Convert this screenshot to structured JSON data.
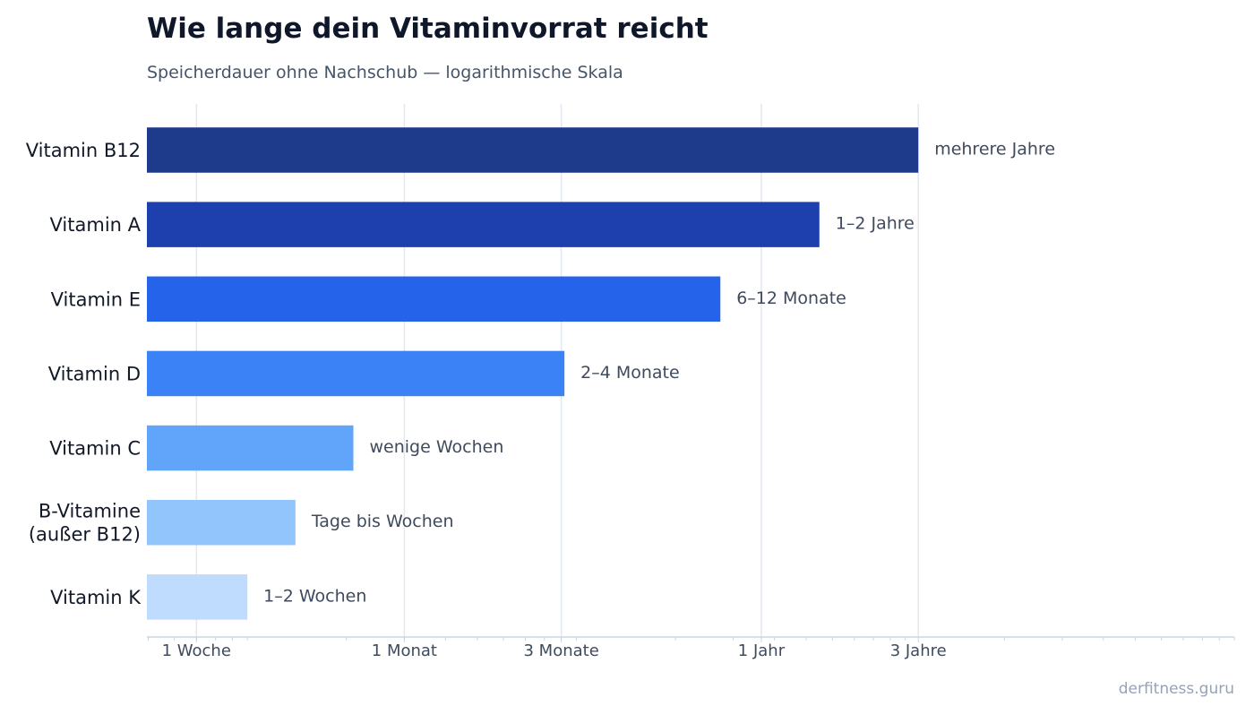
{
  "chart_data": {
    "type": "bar",
    "orientation": "horizontal",
    "title": "Wie lange dein Vitaminvorrat reicht",
    "subtitle": "Speicherdauer ohne Nachschub — logarithmische Skala",
    "xlabel": "",
    "ylabel": "",
    "x_scale": "log",
    "x_unit": "days",
    "xlim": [
      4.95,
      10000
    ],
    "grid": "vertical",
    "x_ticks": [
      {
        "value": 7,
        "label": "1 Woche"
      },
      {
        "value": 30,
        "label": "1 Monat"
      },
      {
        "value": 90,
        "label": "3 Monate"
      },
      {
        "value": 365,
        "label": "1 Jahr"
      },
      {
        "value": 1095,
        "label": "3 Jahre"
      }
    ],
    "categories": [
      "Vitamin B12",
      "Vitamin A",
      "Vitamin E",
      "Vitamin D",
      "Vitamin C",
      "B-Vitamine (außer B12)",
      "Vitamin K"
    ],
    "category_lines": [
      [
        "Vitamin B12"
      ],
      [
        "Vitamin A"
      ],
      [
        "Vitamin E"
      ],
      [
        "Vitamin D"
      ],
      [
        "Vitamin C"
      ],
      [
        "B-Vitamine",
        "(außer B12)"
      ],
      [
        "Vitamin K"
      ]
    ],
    "values": [
      1095,
      548,
      274,
      92,
      21,
      14,
      10
    ],
    "labels": [
      "mehrere Jahre",
      "1–2 Jahre",
      "6–12 Monate",
      "2–4 Monate",
      "wenige Wochen",
      "Tage bis Wochen",
      "1–2 Wochen"
    ],
    "colors": [
      "#1e3a8a",
      "#1e40af",
      "#2563eb",
      "#3b82f6",
      "#60a5fa",
      "#93c5fd",
      "#bfdbfe"
    ]
  },
  "credit": "derfitness.guru"
}
